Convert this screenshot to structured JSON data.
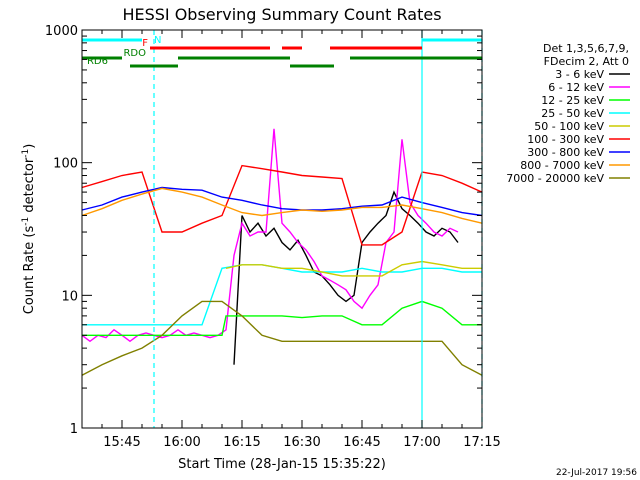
{
  "chart_data": {
    "type": "line",
    "title": "HESSI Observing Summary Count Rates",
    "xlabel": "Start Time (28-Jan-15 15:35:22)",
    "ylabel": "Count Rate (s⁻¹ detector⁻¹)",
    "ylabel_parts": [
      "Count Rate (s",
      "-1",
      " detector",
      "-1",
      ")"
    ],
    "scale_y": "log",
    "xlim_minutes_since_1535": [
      0,
      100
    ],
    "ylim": [
      1,
      1000
    ],
    "x_ticks": [
      "15:45",
      "16:00",
      "16:15",
      "16:30",
      "16:45",
      "17:00",
      "17:15"
    ],
    "x_tick_minutes": [
      10,
      25,
      40,
      55,
      70,
      85,
      100
    ],
    "y_ticks": [
      "1",
      "10",
      "100",
      "1000"
    ],
    "y_tick_values": [
      1,
      10,
      100,
      1000
    ],
    "legend_header": [
      "Det 1,3,5,6,7,9,",
      "FDecim 2, Att 0"
    ],
    "series": [
      {
        "name": "3 - 6 keV",
        "color": "#000000",
        "x": [
          38,
          40,
          42,
          44,
          46,
          48,
          50,
          52,
          54,
          56,
          58,
          60,
          62,
          64,
          66,
          68,
          70,
          72,
          74,
          76,
          78,
          80,
          82,
          84,
          86,
          88,
          90,
          92,
          94
        ],
        "y": [
          3,
          40,
          30,
          35,
          28,
          32,
          25,
          22,
          26,
          20,
          15,
          14,
          12,
          10,
          9,
          10,
          25,
          30,
          35,
          40,
          60,
          45,
          40,
          35,
          30,
          28,
          32,
          30,
          25
        ]
      },
      {
        "name": "6 - 12 keV",
        "color": "#ff00ff",
        "x": [
          0,
          2,
          4,
          6,
          8,
          10,
          12,
          14,
          16,
          18,
          20,
          22,
          24,
          26,
          28,
          30,
          32,
          34,
          36,
          38,
          40,
          42,
          44,
          46,
          48,
          50,
          52,
          54,
          56,
          58,
          60,
          62,
          64,
          66,
          68,
          70,
          72,
          74,
          76,
          78,
          80,
          82,
          84,
          86,
          88,
          90,
          92,
          94
        ],
        "y": [
          5,
          4.5,
          5,
          4.8,
          5.5,
          5,
          4.5,
          5,
          5.2,
          5,
          4.8,
          5,
          5.5,
          5,
          5.2,
          5,
          4.8,
          5,
          5.5,
          20,
          35,
          28,
          30,
          30,
          180,
          35,
          30,
          25,
          22,
          18,
          14,
          13,
          12,
          11,
          9,
          8,
          10,
          12,
          25,
          30,
          150,
          50,
          40,
          35,
          30,
          28,
          32,
          30
        ]
      },
      {
        "name": "12 - 25 keV",
        "color": "#00ff00",
        "x": [
          0,
          5,
          10,
          15,
          20,
          25,
          30,
          35,
          36,
          40,
          45,
          50,
          55,
          60,
          65,
          70,
          75,
          80,
          85,
          90,
          95,
          100
        ],
        "y": [
          5,
          5,
          5,
          5,
          5,
          5,
          5,
          5,
          7,
          7,
          7,
          7,
          6.8,
          7,
          7,
          6,
          6,
          8,
          9,
          8,
          6,
          6
        ]
      },
      {
        "name": "25 - 50 keV",
        "color": "#00ffff",
        "x": [
          0,
          5,
          10,
          15,
          20,
          25,
          30,
          35,
          40,
          45,
          50,
          55,
          60,
          65,
          70,
          75,
          80,
          85,
          90,
          95,
          100
        ],
        "y": [
          6,
          6,
          6,
          6,
          6,
          6,
          6,
          16,
          17,
          17,
          16,
          15,
          15,
          15,
          16,
          15,
          15,
          16,
          16,
          15,
          15
        ]
      },
      {
        "name": "50 - 100 keV",
        "color": "#cccc00",
        "x": [
          36,
          40,
          45,
          50,
          55,
          60,
          65,
          70,
          75,
          80,
          85,
          90,
          95,
          100
        ],
        "y": [
          16,
          17,
          17,
          16,
          16,
          15,
          14,
          14,
          14,
          17,
          18,
          17,
          16,
          16
        ]
      },
      {
        "name": "100 - 300 keV",
        "color": "#ff0000",
        "x": [
          0,
          5,
          10,
          15,
          20,
          25,
          30,
          35,
          40,
          45,
          50,
          55,
          60,
          65,
          70,
          75,
          80,
          85,
          90,
          95,
          100
        ],
        "y": [
          65,
          72,
          80,
          85,
          30,
          30,
          35,
          40,
          95,
          90,
          85,
          80,
          78,
          76,
          24,
          24,
          30,
          85,
          80,
          70,
          60
        ]
      },
      {
        "name": "300 - 800 keV",
        "color": "#0000ff",
        "x": [
          0,
          5,
          10,
          15,
          20,
          25,
          30,
          35,
          40,
          45,
          50,
          55,
          60,
          65,
          70,
          75,
          80,
          85,
          90,
          95,
          100
        ],
        "y": [
          44,
          48,
          55,
          60,
          65,
          63,
          62,
          55,
          52,
          48,
          45,
          44,
          44,
          45,
          47,
          48,
          55,
          50,
          46,
          42,
          40
        ]
      },
      {
        "name": "800 - 7000 keV",
        "color": "#ff9900",
        "x": [
          0,
          5,
          10,
          15,
          20,
          25,
          30,
          35,
          40,
          45,
          50,
          55,
          60,
          65,
          70,
          75,
          80,
          85,
          90,
          95,
          100
        ],
        "y": [
          40,
          45,
          52,
          58,
          64,
          60,
          55,
          48,
          42,
          40,
          42,
          44,
          43,
          44,
          46,
          46,
          48,
          45,
          42,
          38,
          35
        ]
      },
      {
        "name": "7000 - 20000 keV",
        "color": "#808000",
        "x": [
          0,
          5,
          10,
          15,
          20,
          25,
          30,
          35,
          40,
          45,
          50,
          55,
          60,
          65,
          70,
          75,
          80,
          85,
          90,
          95,
          100
        ],
        "y": [
          2.5,
          3,
          3.5,
          4,
          5,
          7,
          9,
          9,
          7,
          5,
          4.5,
          4.5,
          4.5,
          4.5,
          4.5,
          4.5,
          4.5,
          4.5,
          4.5,
          3,
          2.5
        ]
      }
    ],
    "indicators": [
      {
        "label": "N",
        "color": "#00ffff",
        "segments": [
          [
            0,
            15
          ],
          [
            85,
            100
          ]
        ]
      },
      {
        "label": "F",
        "color": "#ff0000",
        "segments": [
          [
            17,
            47
          ],
          [
            50,
            55
          ],
          [
            62,
            85
          ]
        ]
      },
      {
        "label": "RDO",
        "color": "#008000",
        "segments": [
          [
            0,
            10
          ],
          [
            24,
            52
          ],
          [
            67,
            100
          ]
        ]
      },
      {
        "label": "RD6",
        "color": "#008000",
        "segments": [
          [
            12,
            24
          ],
          [
            52,
            63
          ]
        ]
      }
    ],
    "cyan_vertical_lines": [
      {
        "minute": 18,
        "style": "dashed"
      },
      {
        "minute": 85,
        "style": "solid"
      },
      {
        "minute": 100,
        "style": "dashed"
      }
    ],
    "footer_date": "22-Jul-2017 19:56"
  }
}
